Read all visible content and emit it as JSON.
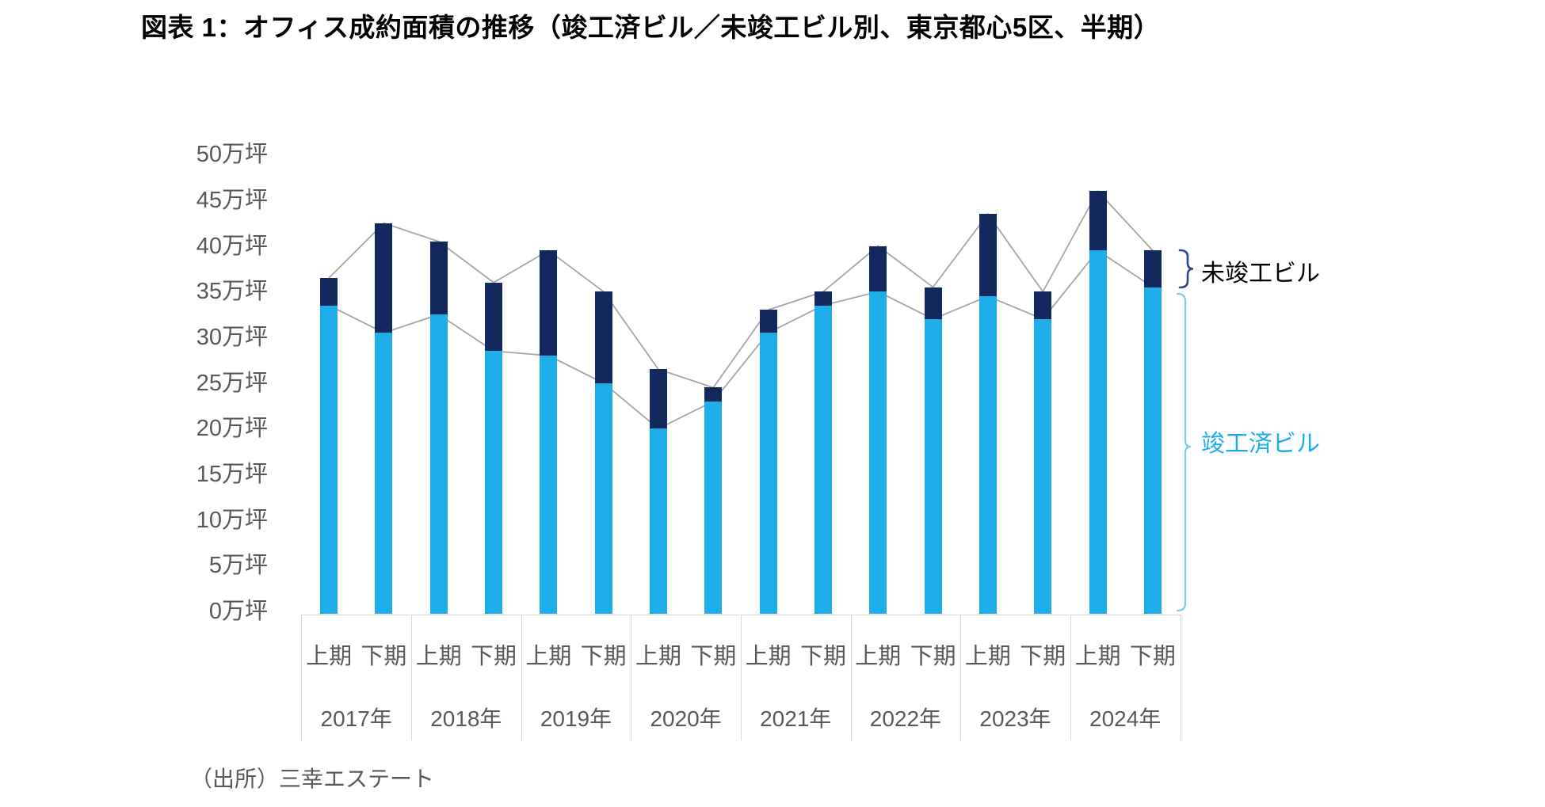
{
  "title": "図表 1：オフィス成約面積の推移（竣工済ビル／未竣工ビル別、東京都心5区、半期）",
  "source": "（出所）三幸エステート",
  "legend": {
    "incomplete": "未竣工ビル",
    "completed": "竣工済ビル"
  },
  "colors": {
    "completed": "#1fadea",
    "incomplete": "#13295e",
    "completed_brace": "#7fccee",
    "incomplete_brace": "#2c4a86",
    "connector_line": "#a6a6a6",
    "axis_text": "#595959",
    "table_border": "#d9d9d9",
    "title_text": "#000000",
    "legend_incomplete_text": "#000000"
  },
  "y_axis": {
    "unit": "万坪",
    "min": 0,
    "max": 50,
    "step": 5,
    "tick_labels": [
      "0万坪",
      "5万坪",
      "10万坪",
      "15万坪",
      "20万坪",
      "25万坪",
      "30万坪",
      "35万坪",
      "40万坪",
      "45万坪",
      "50万坪"
    ]
  },
  "x_axis": {
    "years": [
      "2017年",
      "2018年",
      "2019年",
      "2020年",
      "2021年",
      "2022年",
      "2023年",
      "2024年"
    ],
    "half_labels": [
      "上期",
      "下期"
    ]
  },
  "chart_data": {
    "type": "bar",
    "subtype": "stacked-columns-with-connector-lines",
    "title": "図表 1：オフィス成約面積の推移（竣工済ビル／未竣工ビル別、東京都心5区、半期）",
    "unit": "万坪",
    "categories": [
      "2017年上期",
      "2017年下期",
      "2018年上期",
      "2018年下期",
      "2019年上期",
      "2019年下期",
      "2020年上期",
      "2020年下期",
      "2021年上期",
      "2021年下期",
      "2022年上期",
      "2022年下期",
      "2023年上期",
      "2023年下期",
      "2024年上期",
      "2024年下期"
    ],
    "series": [
      {
        "name": "竣工済ビル",
        "color": "#1fadea",
        "values": [
          33.5,
          30.5,
          32.5,
          28.5,
          28.0,
          25.0,
          20.0,
          23.0,
          30.5,
          33.5,
          35.0,
          32.0,
          34.5,
          32.0,
          39.5,
          35.5
        ]
      },
      {
        "name": "未竣工ビル",
        "color": "#13295e",
        "values": [
          3.0,
          12.0,
          8.0,
          7.5,
          11.5,
          10.0,
          6.5,
          1.5,
          2.5,
          1.5,
          5.0,
          3.5,
          9.0,
          3.0,
          6.5,
          4.0
        ]
      }
    ],
    "totals": [
      36.5,
      42.5,
      40.5,
      36.0,
      39.5,
      35.0,
      26.5,
      24.5,
      33.0,
      35.0,
      40.0,
      35.5,
      43.5,
      35.0,
      46.0,
      39.5
    ],
    "connector_lines": [
      "totals",
      "completed-tops"
    ],
    "ylim": [
      0,
      50
    ],
    "ytick_step": 5,
    "grid": false,
    "legend_position": "right"
  }
}
